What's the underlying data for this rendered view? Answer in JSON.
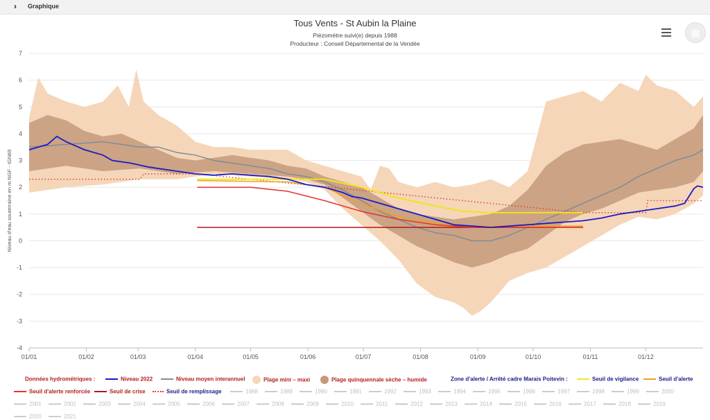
{
  "topbar": {
    "label": "Graphique"
  },
  "header": {
    "title": "Tous Vents - St Aubin la Plaine",
    "subtitle1": "Piézomètre suivi(e) depuis 1988",
    "subtitle2": "Producteur : Conseil Départemental de la Vendée"
  },
  "icons": {
    "menu": "hamburger-menu-icon",
    "toggle": "grid-icon"
  },
  "chart_data": {
    "type": "area",
    "ylabel": "Niveau d'eau souterraine en m NGF - IGN69",
    "ylim": [
      -4,
      7
    ],
    "y_ticks": [
      "7",
      "6",
      "5",
      "4",
      "3",
      "2",
      "1",
      "0",
      "-1",
      "-2",
      "-3",
      "-4"
    ],
    "x_ticks": [
      "01/01",
      "01/02",
      "01/03",
      "01/04",
      "01/05",
      "01/06",
      "01/07",
      "01/08",
      "01/09",
      "01/10",
      "01/11",
      "01/12"
    ],
    "colors": {
      "niveau_2022": "#1a1ac8",
      "moyen": "#7f8c99",
      "mini_maxi": "#f5d6b8",
      "quinquennale": "#c49a7a",
      "vigilance": "#f2e51a",
      "alerte": "#f0a01a",
      "alerte_renforcee": "#e3342f",
      "crise": "#b01818",
      "remplissage": "#e33a3a"
    },
    "series": {
      "mini_maxi_upper": [
        [
          0,
          4.6
        ],
        [
          5,
          6.1
        ],
        [
          10,
          5.5
        ],
        [
          20,
          5.2
        ],
        [
          30,
          5.0
        ],
        [
          40,
          5.2
        ],
        [
          48,
          5.8
        ],
        [
          54,
          5.0
        ],
        [
          58,
          6.4
        ],
        [
          62,
          5.2
        ],
        [
          70,
          4.7
        ],
        [
          80,
          4.3
        ],
        [
          90,
          3.7
        ],
        [
          100,
          3.5
        ],
        [
          110,
          3.5
        ],
        [
          120,
          3.4
        ],
        [
          130,
          3.4
        ],
        [
          140,
          3.4
        ],
        [
          150,
          3.0
        ],
        [
          160,
          2.8
        ],
        [
          170,
          2.6
        ],
        [
          180,
          2.4
        ],
        [
          185,
          1.9
        ],
        [
          190,
          2.8
        ],
        [
          195,
          2.7
        ],
        [
          200,
          2.2
        ],
        [
          210,
          2.0
        ],
        [
          220,
          2.2
        ],
        [
          230,
          2.0
        ],
        [
          240,
          2.1
        ],
        [
          250,
          2.3
        ],
        [
          260,
          2.0
        ],
        [
          270,
          2.6
        ],
        [
          275,
          3.9
        ],
        [
          280,
          5.2
        ],
        [
          290,
          5.4
        ],
        [
          300,
          5.6
        ],
        [
          310,
          5.2
        ],
        [
          320,
          5.9
        ],
        [
          330,
          5.6
        ],
        [
          334,
          6.2
        ],
        [
          340,
          5.8
        ],
        [
          350,
          5.6
        ],
        [
          360,
          5.0
        ],
        [
          365,
          5.4
        ]
      ],
      "mini_maxi_lower": [
        [
          0,
          1.8
        ],
        [
          20,
          2.0
        ],
        [
          40,
          2.1
        ],
        [
          60,
          2.3
        ],
        [
          80,
          2.3
        ],
        [
          100,
          2.5
        ],
        [
          120,
          2.4
        ],
        [
          140,
          2.3
        ],
        [
          150,
          2.2
        ],
        [
          160,
          1.9
        ],
        [
          170,
          1.2
        ],
        [
          180,
          0.6
        ],
        [
          190,
          0.0
        ],
        [
          200,
          -0.7
        ],
        [
          210,
          -1.6
        ],
        [
          220,
          -2.1
        ],
        [
          230,
          -2.3
        ],
        [
          235,
          -2.5
        ],
        [
          240,
          -2.8
        ],
        [
          245,
          -2.6
        ],
        [
          250,
          -2.3
        ],
        [
          260,
          -1.5
        ],
        [
          270,
          -1.2
        ],
        [
          280,
          -1.0
        ],
        [
          290,
          -0.6
        ],
        [
          300,
          -0.2
        ],
        [
          310,
          0.2
        ],
        [
          320,
          0.6
        ],
        [
          330,
          0.9
        ],
        [
          340,
          0.8
        ],
        [
          350,
          1.0
        ],
        [
          360,
          1.4
        ],
        [
          365,
          1.7
        ]
      ],
      "quinquennale_upper": [
        [
          0,
          4.4
        ],
        [
          10,
          4.7
        ],
        [
          20,
          4.5
        ],
        [
          30,
          4.1
        ],
        [
          40,
          3.9
        ],
        [
          50,
          4.0
        ],
        [
          60,
          3.7
        ],
        [
          70,
          3.4
        ],
        [
          80,
          3.1
        ],
        [
          90,
          3.0
        ],
        [
          100,
          3.1
        ],
        [
          110,
          3.2
        ],
        [
          120,
          3.1
        ],
        [
          130,
          3.0
        ],
        [
          140,
          2.8
        ],
        [
          150,
          2.7
        ],
        [
          160,
          2.4
        ],
        [
          170,
          2.2
        ],
        [
          180,
          2.0
        ],
        [
          190,
          1.6
        ],
        [
          200,
          1.2
        ],
        [
          210,
          1.0
        ],
        [
          220,
          0.9
        ],
        [
          230,
          0.8
        ],
        [
          240,
          0.9
        ],
        [
          250,
          1.0
        ],
        [
          260,
          1.3
        ],
        [
          270,
          1.9
        ],
        [
          280,
          2.8
        ],
        [
          290,
          3.3
        ],
        [
          300,
          3.6
        ],
        [
          310,
          3.7
        ],
        [
          320,
          3.8
        ],
        [
          330,
          3.6
        ],
        [
          340,
          3.4
        ],
        [
          350,
          3.8
        ],
        [
          360,
          4.2
        ],
        [
          365,
          4.7
        ]
      ],
      "quinquennale_lower": [
        [
          0,
          2.6
        ],
        [
          20,
          2.8
        ],
        [
          40,
          2.6
        ],
        [
          60,
          2.7
        ],
        [
          80,
          2.5
        ],
        [
          100,
          2.6
        ],
        [
          120,
          2.5
        ],
        [
          140,
          2.4
        ],
        [
          150,
          2.3
        ],
        [
          160,
          2.1
        ],
        [
          170,
          1.6
        ],
        [
          180,
          1.1
        ],
        [
          190,
          0.6
        ],
        [
          200,
          0.2
        ],
        [
          210,
          -0.2
        ],
        [
          220,
          -0.5
        ],
        [
          230,
          -0.8
        ],
        [
          240,
          -1.0
        ],
        [
          250,
          -0.8
        ],
        [
          260,
          -0.5
        ],
        [
          270,
          -0.3
        ],
        [
          280,
          0.2
        ],
        [
          290,
          0.7
        ],
        [
          300,
          1.0
        ],
        [
          310,
          1.2
        ],
        [
          320,
          1.5
        ],
        [
          330,
          1.8
        ],
        [
          340,
          1.9
        ],
        [
          350,
          2.0
        ],
        [
          360,
          2.2
        ],
        [
          365,
          2.6
        ]
      ],
      "niveau_moyen": [
        [
          0,
          3.5
        ],
        [
          20,
          3.6
        ],
        [
          40,
          3.7
        ],
        [
          50,
          3.6
        ],
        [
          60,
          3.5
        ],
        [
          70,
          3.5
        ],
        [
          80,
          3.3
        ],
        [
          90,
          3.2
        ],
        [
          100,
          3.0
        ],
        [
          110,
          2.9
        ],
        [
          120,
          2.8
        ],
        [
          130,
          2.7
        ],
        [
          140,
          2.5
        ],
        [
          150,
          2.4
        ],
        [
          160,
          2.2
        ],
        [
          170,
          1.9
        ],
        [
          180,
          1.5
        ],
        [
          190,
          1.1
        ],
        [
          200,
          0.8
        ],
        [
          210,
          0.5
        ],
        [
          220,
          0.3
        ],
        [
          230,
          0.2
        ],
        [
          240,
          0.0
        ],
        [
          250,
          0.0
        ],
        [
          260,
          0.2
        ],
        [
          270,
          0.5
        ],
        [
          280,
          0.8
        ],
        [
          290,
          1.1
        ],
        [
          300,
          1.4
        ],
        [
          310,
          1.7
        ],
        [
          320,
          2.0
        ],
        [
          330,
          2.4
        ],
        [
          340,
          2.7
        ],
        [
          350,
          3.0
        ],
        [
          360,
          3.2
        ],
        [
          365,
          3.4
        ]
      ],
      "niveau_2022": [
        [
          0,
          3.4
        ],
        [
          5,
          3.5
        ],
        [
          10,
          3.6
        ],
        [
          15,
          3.9
        ],
        [
          20,
          3.7
        ],
        [
          30,
          3.4
        ],
        [
          40,
          3.2
        ],
        [
          45,
          3.0
        ],
        [
          55,
          2.9
        ],
        [
          65,
          2.75
        ],
        [
          80,
          2.6
        ],
        [
          90,
          2.5
        ],
        [
          100,
          2.45
        ],
        [
          110,
          2.5
        ],
        [
          120,
          2.45
        ],
        [
          130,
          2.4
        ],
        [
          140,
          2.3
        ],
        [
          150,
          2.1
        ],
        [
          160,
          2.0
        ],
        [
          165,
          1.9
        ],
        [
          170,
          1.8
        ],
        [
          175,
          1.65
        ],
        [
          180,
          1.6
        ],
        [
          190,
          1.4
        ],
        [
          200,
          1.2
        ],
        [
          210,
          1.0
        ],
        [
          220,
          0.8
        ],
        [
          230,
          0.6
        ],
        [
          240,
          0.55
        ],
        [
          250,
          0.5
        ],
        [
          260,
          0.55
        ],
        [
          270,
          0.6
        ],
        [
          280,
          0.65
        ],
        [
          290,
          0.7
        ],
        [
          300,
          0.75
        ],
        [
          310,
          0.85
        ],
        [
          320,
          1.0
        ],
        [
          330,
          1.1
        ],
        [
          340,
          1.2
        ],
        [
          350,
          1.3
        ],
        [
          355,
          1.4
        ],
        [
          360,
          1.95
        ],
        [
          362,
          2.05
        ],
        [
          365,
          2.0
        ]
      ],
      "seuil_vigilance": [
        [
          91,
          2.3
        ],
        [
          160,
          2.3
        ],
        [
          180,
          2.0
        ],
        [
          200,
          1.6
        ],
        [
          220,
          1.3
        ],
        [
          235,
          1.1
        ],
        [
          250,
          1.05
        ],
        [
          280,
          1.05
        ],
        [
          300,
          1.05
        ]
      ],
      "seuil_alerte": [
        [
          91,
          2.25
        ],
        [
          140,
          2.2
        ],
        [
          160,
          2.0
        ],
        [
          180,
          1.4
        ],
        [
          200,
          0.9
        ],
        [
          220,
          0.65
        ],
        [
          240,
          0.55
        ],
        [
          270,
          0.55
        ],
        [
          300,
          0.55
        ]
      ],
      "seuil_alerte_renforcee": [
        [
          91,
          2.0
        ],
        [
          120,
          2.0
        ],
        [
          140,
          1.85
        ],
        [
          160,
          1.5
        ],
        [
          180,
          1.1
        ],
        [
          200,
          0.8
        ],
        [
          220,
          0.6
        ],
        [
          240,
          0.5
        ],
        [
          270,
          0.5
        ],
        [
          300,
          0.5
        ]
      ],
      "seuil_crise": [
        [
          91,
          0.5
        ],
        [
          300,
          0.5
        ]
      ],
      "seuil_remplissage": [
        [
          0,
          2.3
        ],
        [
          60,
          2.3
        ],
        [
          62,
          2.5
        ],
        [
          91,
          2.5
        ],
        [
          300,
          1.05
        ],
        [
          334,
          1.05
        ],
        [
          335,
          1.5
        ],
        [
          365,
          1.5
        ]
      ]
    }
  },
  "legend": {
    "row1": [
      {
        "label": "Données hydrométriques :",
        "kind": "none",
        "style": "red bold"
      },
      {
        "label": "Niveau 2022",
        "kind": "line",
        "color": "#1a1ac8",
        "style": "red bold"
      },
      {
        "label": "Niveau moyen interannuel",
        "kind": "line",
        "color": "#7f8c99",
        "style": "red bold"
      },
      {
        "label": "Plage mini – maxi",
        "kind": "circle",
        "color": "#f5d6b8",
        "style": "red bold"
      },
      {
        "label": "Plage quinquennale sèche – humide",
        "kind": "circle",
        "color": "#c49a7a",
        "style": "red bold"
      },
      {
        "label": "Zone d'alerte / Arrêté cadre Marais Poitevin :",
        "kind": "none",
        "style": "navy bold"
      },
      {
        "label": "Seuil de vigilance",
        "kind": "line",
        "color": "#f2e51a",
        "style": "navy bold"
      },
      {
        "label": "Seuil d'alerte",
        "kind": "line",
        "color": "#f0a01a",
        "style": "navy bold"
      }
    ],
    "row2": [
      {
        "label": "Seuil d'alerte renforcée",
        "kind": "line",
        "color": "#e3342f",
        "style": "red bold"
      },
      {
        "label": "Seuil de crise",
        "kind": "line",
        "color": "#b01818",
        "style": "red bold"
      },
      {
        "label": "Seuil de remplissage",
        "kind": "dots",
        "color": "#e33a3a",
        "style": "navy bold"
      }
    ],
    "years": [
      "1988",
      "1989",
      "1990",
      "1991",
      "1992",
      "1993",
      "1994",
      "1995",
      "1996",
      "1997",
      "1998",
      "1999",
      "2000",
      "2001",
      "2002",
      "2003",
      "2004",
      "2005",
      "2006",
      "2007",
      "2008",
      "2009",
      "2010",
      "2011",
      "2012",
      "2013",
      "2014",
      "2015",
      "2016",
      "2017",
      "2018",
      "2019",
      "2020",
      "2021"
    ]
  }
}
